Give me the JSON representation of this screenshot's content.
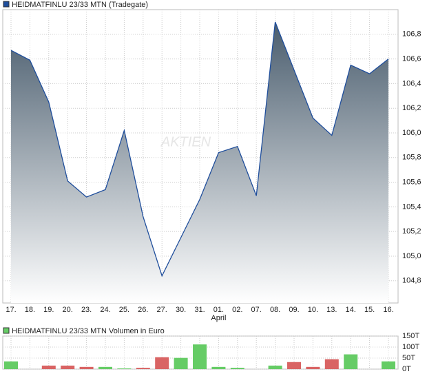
{
  "chart_data": [
    {
      "type": "area",
      "legend": "HEIDMATFINLU 23/33 MTN (Tradegate)",
      "watermark": "AKTIEN",
      "categories": [
        "17.",
        "18.",
        "19.",
        "20.",
        "23.",
        "24.",
        "25.",
        "26.",
        "27.",
        "30.",
        "31.",
        "01.",
        "02.",
        "07.",
        "08.",
        "09.",
        "10.",
        "13.",
        "14.",
        "15.",
        "16."
      ],
      "month_label": "April",
      "month_label_at": 11,
      "series": [
        {
          "name": "HEIDMATFINLU 23/33 MTN (Tradegate)",
          "color": "#1f4e9c",
          "values": [
            106.67,
            106.59,
            106.25,
            105.61,
            105.48,
            105.54,
            106.02,
            105.32,
            104.84,
            105.15,
            105.46,
            105.84,
            105.89,
            105.49,
            106.9,
            106.51,
            106.12,
            105.98,
            106.55,
            106.48,
            106.6
          ]
        }
      ],
      "ylim": [
        104.62,
        107.0
      ],
      "yticks": [
        {
          "value": 104.8,
          "label": "104,8"
        },
        {
          "value": 105.0,
          "label": "105,0"
        },
        {
          "value": 105.2,
          "label": "105,2"
        },
        {
          "value": 105.4,
          "label": "105,4"
        },
        {
          "value": 105.6,
          "label": "105,6"
        },
        {
          "value": 105.8,
          "label": "105,8"
        },
        {
          "value": 106.0,
          "label": "106,0"
        },
        {
          "value": 106.2,
          "label": "106,2"
        },
        {
          "value": 106.4,
          "label": "106,4"
        },
        {
          "value": 106.6,
          "label": "106,6"
        },
        {
          "value": 106.8,
          "label": "106,8"
        }
      ],
      "grid": true
    },
    {
      "type": "bar",
      "legend": "HEIDMATFINLU 23/33 MTN Volumen in Euro",
      "legend_color": "#66cc66",
      "values": [
        35,
        0,
        16,
        16,
        10,
        10,
        3,
        6,
        54,
        51,
        112,
        10,
        6,
        0,
        16,
        32,
        10,
        45,
        67,
        0,
        35
      ],
      "colors": [
        "#66cc66",
        "#66cc66",
        "#d96464",
        "#d96464",
        "#d96464",
        "#66cc66",
        "#66cc66",
        "#d96464",
        "#d96464",
        "#66cc66",
        "#66cc66",
        "#66cc66",
        "#66cc66",
        "#66cc66",
        "#66cc66",
        "#d96464",
        "#d96464",
        "#d96464",
        "#66cc66",
        "#66cc66",
        "#66cc66"
      ],
      "ylim": [
        0,
        150
      ],
      "yticks": [
        {
          "value": 0,
          "label": "0T"
        },
        {
          "value": 50,
          "label": "50T"
        },
        {
          "value": 100,
          "label": "100T"
        },
        {
          "value": 150,
          "label": "150T"
        }
      ],
      "grid": true
    }
  ]
}
